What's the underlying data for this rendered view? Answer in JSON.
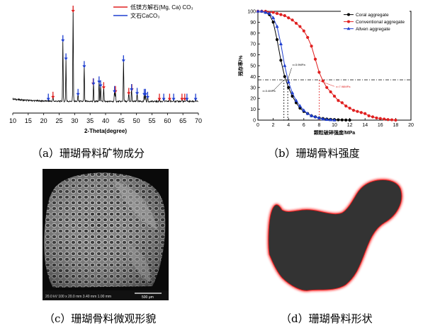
{
  "panel_a": {
    "caption": "（a）珊瑚骨料矿物成分",
    "legend": [
      {
        "label": "低镁方解石(Mg, Ca) CO₃",
        "color": "#e02020"
      },
      {
        "label": "文石CaCO₃",
        "color": "#1f3fd0"
      }
    ],
    "chart_data": {
      "type": "line",
      "xlabel": "2-Theta(degree)",
      "ylabel": "",
      "x_ticks": [
        "10",
        "15",
        "20",
        "25",
        "30",
        "35",
        "40",
        "45",
        "50",
        "55",
        "60",
        "65",
        "70"
      ],
      "xlim": [
        10,
        70
      ],
      "red_markers": [
        23,
        29.5,
        36,
        39.4,
        43.2,
        47.5,
        48.5,
        57.4,
        60.7,
        64.7,
        65.6
      ],
      "blue_markers": [
        21.5,
        26.2,
        27.2,
        31.1,
        33.1,
        36.1,
        37.9,
        38.4,
        42.9,
        45.8,
        48.4,
        50.2,
        52.5,
        52.9,
        53.6,
        58.8,
        62,
        66.3,
        69.1
      ],
      "peaks": [
        [
          23,
          6
        ],
        [
          26.2,
          65
        ],
        [
          27.2,
          46
        ],
        [
          29.5,
          100
        ],
        [
          31.1,
          9
        ],
        [
          33.1,
          38
        ],
        [
          36.1,
          20
        ],
        [
          37.9,
          22
        ],
        [
          38.4,
          18
        ],
        [
          39.4,
          16
        ],
        [
          42.9,
          12
        ],
        [
          43.2,
          10
        ],
        [
          45.8,
          44
        ],
        [
          47.5,
          10
        ],
        [
          48.4,
          14
        ],
        [
          50.2,
          10
        ],
        [
          52.5,
          8
        ],
        [
          52.9,
          9
        ],
        [
          53.6,
          6
        ],
        [
          57.4,
          4
        ],
        [
          58.8,
          4
        ],
        [
          60.7,
          4
        ],
        [
          62,
          3
        ],
        [
          64.7,
          3
        ],
        [
          66.3,
          3
        ],
        [
          69.1,
          3
        ]
      ]
    }
  },
  "panel_b": {
    "caption": "（b）珊瑚骨料强度",
    "chart_data": {
      "type": "line",
      "ylabel": "残存率/%",
      "xlabel": "颗粒破碎强度/MPa",
      "xlim": [
        0,
        20
      ],
      "ylim": [
        0,
        100
      ],
      "x_ticks": [
        "0",
        "2",
        "4",
        "6",
        "8",
        "10",
        "12",
        "14",
        "16",
        "18",
        "20"
      ],
      "y_ticks": [
        "0",
        "10",
        "20",
        "30",
        "40",
        "50",
        "60",
        "70",
        "80",
        "90",
        "100"
      ],
      "grid": false,
      "legend_position": "top-right",
      "threshold_y": 37,
      "series": [
        {
          "name": "Coral aggregate",
          "color": "#000000",
          "marker": "circle",
          "x": [
            0,
            0.5,
            1,
            1.5,
            2,
            2.5,
            3,
            3.5,
            4,
            4.5,
            5,
            5.5,
            6,
            6.5,
            7,
            7.5,
            8,
            8.5,
            9,
            9.5,
            10,
            10.5,
            11,
            11.5,
            12
          ],
          "y": [
            100,
            100,
            99,
            97,
            90,
            74,
            55,
            40,
            30,
            22,
            16,
            11,
            8,
            6,
            4,
            3,
            2,
            1.5,
            1,
            0.7,
            0.5,
            0.3,
            0.2,
            0.1,
            0
          ]
        },
        {
          "name": "Conventional aggregate",
          "color": "#e02020",
          "marker": "circle",
          "x": [
            0,
            0.5,
            1,
            1.5,
            2,
            2.5,
            3,
            3.5,
            4,
            4.5,
            5,
            5.5,
            6,
            6.5,
            7,
            7.5,
            8,
            8.5,
            9,
            9.5,
            10,
            10.5,
            11,
            11.5,
            12,
            12.5,
            13,
            13.5,
            14,
            14.5,
            15,
            15.5,
            16,
            16.5,
            17,
            17.5,
            18
          ],
          "y": [
            100,
            100,
            100,
            99,
            99,
            98,
            97,
            96,
            94,
            92,
            89,
            86,
            82,
            76,
            68,
            56,
            44,
            36,
            30,
            26,
            22,
            18,
            16,
            13,
            11,
            9,
            8,
            7,
            6,
            4,
            3,
            2,
            1.5,
            1,
            0.5,
            0.3,
            0
          ]
        },
        {
          "name": "Allven aggregate",
          "color": "#1f3fd0",
          "marker": "triangle",
          "x": [
            0,
            0.5,
            1,
            1.5,
            2,
            2.5,
            3,
            3.5,
            4,
            4.5,
            5,
            5.5,
            6,
            6.5,
            7,
            7.5,
            8,
            8.5,
            9,
            9.5,
            10
          ],
          "y": [
            100,
            100,
            99,
            98,
            94,
            86,
            70,
            50,
            35,
            25,
            18,
            13,
            9,
            6,
            4,
            3,
            2,
            1,
            0.5,
            0.3,
            0
          ]
        }
      ],
      "annotations": [
        {
          "text": "x=3.4MPa",
          "x": 3.4
        },
        {
          "text": "x=3.9MPa",
          "x": 3.9
        },
        {
          "text": "x=7.98MPa",
          "x": 8
        }
      ]
    }
  },
  "panel_c": {
    "caption": "（c）珊瑚骨料微观形貌",
    "sem_info": "20.0 kV  100 x  20.0 mm  3.40 mm  1.00 mm",
    "scale_label": "500 μm"
  },
  "panel_d": {
    "caption": "（d）珊瑚骨料形状"
  }
}
